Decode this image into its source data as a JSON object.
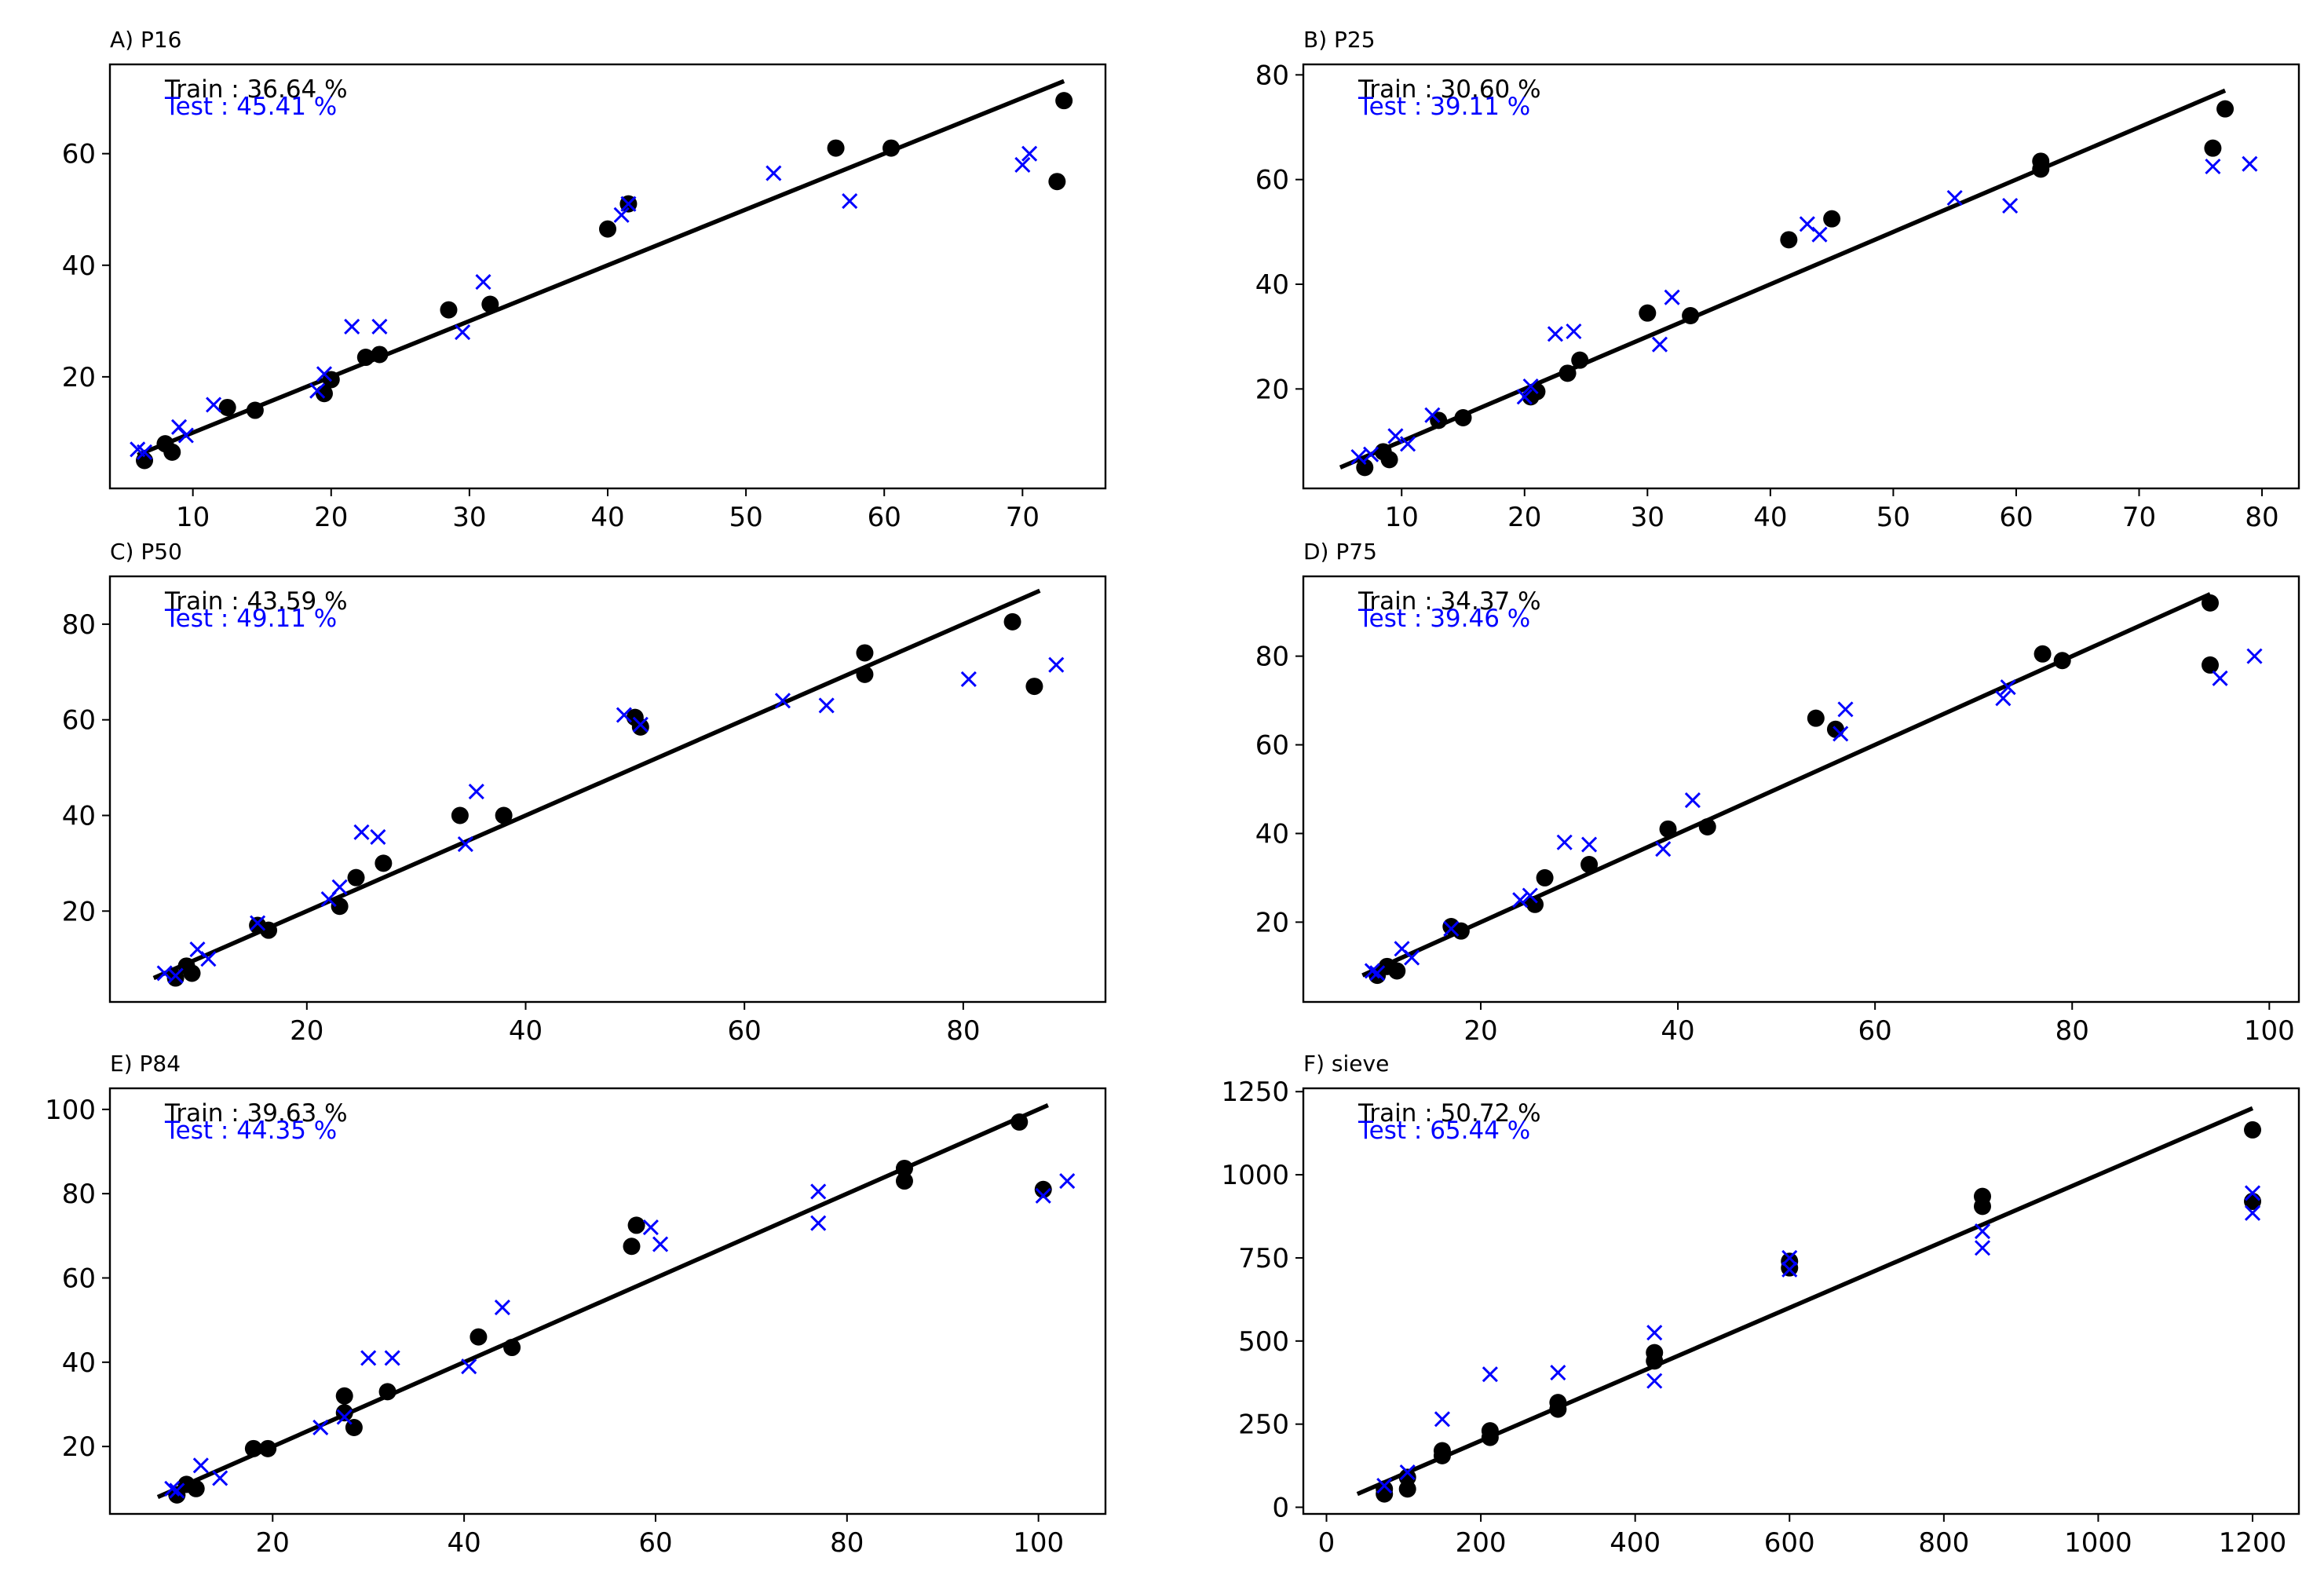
{
  "colors": {
    "train": "#000000",
    "test": "#0000ff",
    "fit": "#000000",
    "axes": "#000000"
  },
  "chart_data": [
    {
      "type": "scatter",
      "title": "A) P16",
      "xlim": [
        4,
        76
      ],
      "ylim": [
        0,
        76
      ],
      "xticks": [
        10,
        20,
        30,
        40,
        50,
        60,
        70
      ],
      "yticks": [
        20,
        40,
        60
      ],
      "fit_line": {
        "x": [
          6,
          73
        ],
        "y": [
          6,
          73
        ]
      },
      "annotations": {
        "train": "Train : 36.64 %",
        "test": "Test : 45.41 %"
      },
      "series": [
        {
          "marker": "circle",
          "color": "#000000",
          "points": [
            [
              6.5,
              5
            ],
            [
              8,
              8
            ],
            [
              8.5,
              6.5
            ],
            [
              12.5,
              14.5
            ],
            [
              14.5,
              14
            ],
            [
              19.5,
              17
            ],
            [
              20,
              19.5
            ],
            [
              22.5,
              23.5
            ],
            [
              23.5,
              24
            ],
            [
              28.5,
              32
            ],
            [
              31.5,
              33
            ],
            [
              40,
              46.5
            ],
            [
              41.5,
              51
            ],
            [
              56.5,
              61
            ],
            [
              60.5,
              61
            ],
            [
              72.5,
              55
            ],
            [
              73,
              69.5
            ]
          ]
        },
        {
          "marker": "x",
          "color": "#0000ff",
          "points": [
            [
              6,
              7
            ],
            [
              6.5,
              6.5
            ],
            [
              9,
              11
            ],
            [
              9.5,
              9.5
            ],
            [
              11.5,
              15
            ],
            [
              19,
              17.5
            ],
            [
              19.5,
              20.5
            ],
            [
              21.5,
              29
            ],
            [
              23.5,
              29
            ],
            [
              29.5,
              28
            ],
            [
              31,
              37
            ],
            [
              41,
              49
            ],
            [
              41.5,
              51
            ],
            [
              52,
              56.5
            ],
            [
              57.5,
              51.5
            ],
            [
              70,
              58
            ],
            [
              70.5,
              60
            ]
          ]
        }
      ]
    },
    {
      "type": "scatter",
      "title": "B) P25",
      "xlim": [
        2,
        83
      ],
      "ylim": [
        1,
        82
      ],
      "xticks": [
        10,
        20,
        30,
        40,
        50,
        60,
        70,
        80
      ],
      "yticks": [
        20,
        40,
        60,
        80
      ],
      "fit_line": {
        "x": [
          5,
          77
        ],
        "y": [
          5,
          77
        ]
      },
      "annotations": {
        "train": "Train : 30.60 %",
        "test": "Test : 39.11 %"
      },
      "series": [
        {
          "marker": "circle",
          "color": "#000000",
          "points": [
            [
              7,
              5
            ],
            [
              8.5,
              8
            ],
            [
              9,
              6.5
            ],
            [
              13,
              14
            ],
            [
              15,
              14.5
            ],
            [
              20.5,
              18.5
            ],
            [
              21,
              19.5
            ],
            [
              23.5,
              23
            ],
            [
              24.5,
              25.5
            ],
            [
              30,
              34.5
            ],
            [
              33.5,
              34
            ],
            [
              41.5,
              48.5
            ],
            [
              45,
              52.5
            ],
            [
              62,
              63.5
            ],
            [
              62,
              62
            ],
            [
              76,
              66
            ],
            [
              77,
              73.5
            ]
          ]
        },
        {
          "marker": "x",
          "color": "#0000ff",
          "points": [
            [
              6.5,
              7
            ],
            [
              7.5,
              7.5
            ],
            [
              9.5,
              11
            ],
            [
              10.5,
              9.5
            ],
            [
              12.5,
              15
            ],
            [
              20,
              18.5
            ],
            [
              20.5,
              20.5
            ],
            [
              22.5,
              30.5
            ],
            [
              24,
              31
            ],
            [
              31,
              28.5
            ],
            [
              32,
              37.5
            ],
            [
              43,
              51.5
            ],
            [
              44,
              49.5
            ],
            [
              55,
              56.5
            ],
            [
              59.5,
              55
            ],
            [
              76,
              62.5
            ],
            [
              79,
              63
            ]
          ]
        }
      ]
    },
    {
      "type": "scatter",
      "title": "C) P50",
      "xlim": [
        2,
        93
      ],
      "ylim": [
        1,
        90
      ],
      "xticks": [
        20,
        40,
        60,
        80
      ],
      "yticks": [
        20,
        40,
        60,
        80
      ],
      "fit_line": {
        "x": [
          6,
          87
        ],
        "y": [
          6,
          87
        ]
      },
      "annotations": {
        "train": "Train : 43.59 %",
        "test": "Test : 49.11 %"
      },
      "series": [
        {
          "marker": "circle",
          "color": "#000000",
          "points": [
            [
              8,
              6
            ],
            [
              9,
              8.5
            ],
            [
              9.5,
              7
            ],
            [
              15.5,
              17
            ],
            [
              16.5,
              16
            ],
            [
              23,
              21
            ],
            [
              24.5,
              27
            ],
            [
              27,
              30
            ],
            [
              34,
              40
            ],
            [
              38,
              40
            ],
            [
              50,
              60.5
            ],
            [
              50.5,
              58.5
            ],
            [
              71,
              69.5
            ],
            [
              71,
              74
            ],
            [
              84.5,
              80.5
            ],
            [
              86.5,
              67
            ]
          ]
        },
        {
          "marker": "x",
          "color": "#0000ff",
          "points": [
            [
              7,
              7
            ],
            [
              8,
              6.5
            ],
            [
              10,
              12
            ],
            [
              11,
              10
            ],
            [
              15.5,
              17.5
            ],
            [
              22,
              22.5
            ],
            [
              23,
              25
            ],
            [
              25,
              36.5
            ],
            [
              26.5,
              35.5
            ],
            [
              34.5,
              34
            ],
            [
              35.5,
              45
            ],
            [
              49,
              61
            ],
            [
              50.5,
              59
            ],
            [
              63.5,
              64
            ],
            [
              67.5,
              63
            ],
            [
              80.5,
              68.5
            ],
            [
              88.5,
              71.5
            ]
          ]
        }
      ]
    },
    {
      "type": "scatter",
      "title": "D) P75",
      "xlim": [
        2,
        103
      ],
      "ylim": [
        2,
        98
      ],
      "xticks": [
        20,
        40,
        60,
        80,
        100
      ],
      "yticks": [
        20,
        40,
        60,
        80
      ],
      "fit_line": {
        "x": [
          8,
          94
        ],
        "y": [
          8,
          94
        ]
      },
      "annotations": {
        "train": "Train : 34.37 %",
        "test": "Test : 39.46 %"
      },
      "series": [
        {
          "marker": "circle",
          "color": "#000000",
          "points": [
            [
              9.5,
              8
            ],
            [
              10.5,
              10
            ],
            [
              11.5,
              9
            ],
            [
              17,
              19
            ],
            [
              18,
              18
            ],
            [
              25.5,
              24
            ],
            [
              26.5,
              30
            ],
            [
              31,
              33
            ],
            [
              39,
              41
            ],
            [
              43,
              41.5
            ],
            [
              54,
              66
            ],
            [
              56,
              63.5
            ],
            [
              77,
              80.5
            ],
            [
              79,
              79
            ],
            [
              94,
              92
            ],
            [
              94,
              78
            ]
          ]
        },
        {
          "marker": "x",
          "color": "#0000ff",
          "points": [
            [
              9,
              9
            ],
            [
              9.5,
              8.5
            ],
            [
              12,
              14
            ],
            [
              13,
              12
            ],
            [
              17,
              18.5
            ],
            [
              24,
              25
            ],
            [
              25,
              26
            ],
            [
              28.5,
              38
            ],
            [
              31,
              37.5
            ],
            [
              38.5,
              36.5
            ],
            [
              41.5,
              47.5
            ],
            [
              56.5,
              62.5
            ],
            [
              57,
              68
            ],
            [
              73,
              70.5
            ],
            [
              73.5,
              73
            ],
            [
              95,
              75
            ],
            [
              98.5,
              80
            ]
          ]
        }
      ]
    },
    {
      "type": "scatter",
      "title": "E) P84",
      "xlim": [
        3,
        107
      ],
      "ylim": [
        4,
        105
      ],
      "xticks": [
        20,
        40,
        60,
        80,
        100
      ],
      "yticks": [
        20,
        40,
        60,
        80,
        100
      ],
      "fit_line": {
        "x": [
          8,
          101
        ],
        "y": [
          8,
          101
        ]
      },
      "annotations": {
        "train": "Train : 39.63 %",
        "test": "Test : 44.35 %"
      },
      "series": [
        {
          "marker": "circle",
          "color": "#000000",
          "points": [
            [
              10,
              8.5
            ],
            [
              11,
              11
            ],
            [
              12,
              10
            ],
            [
              18,
              19.5
            ],
            [
              19.5,
              19.5
            ],
            [
              27.5,
              28
            ],
            [
              27.5,
              32
            ],
            [
              28.5,
              24.5
            ],
            [
              32,
              33
            ],
            [
              41.5,
              46
            ],
            [
              45,
              43.5
            ],
            [
              57.5,
              67.5
            ],
            [
              58,
              72.5
            ],
            [
              86,
              86
            ],
            [
              86,
              83
            ],
            [
              98,
              97
            ],
            [
              100.5,
              81
            ]
          ]
        },
        {
          "marker": "x",
          "color": "#0000ff",
          "points": [
            [
              9.5,
              10
            ],
            [
              10,
              9.5
            ],
            [
              12.5,
              15.5
            ],
            [
              14.5,
              12.5
            ],
            [
              25,
              24.5
            ],
            [
              27.5,
              27
            ],
            [
              30,
              41
            ],
            [
              32.5,
              41
            ],
            [
              40.5,
              39
            ],
            [
              44,
              53
            ],
            [
              59.5,
              72
            ],
            [
              60.5,
              68
            ],
            [
              77,
              80.5
            ],
            [
              77,
              73
            ],
            [
              100.5,
              79.5
            ],
            [
              103,
              83
            ]
          ]
        }
      ]
    },
    {
      "type": "scatter",
      "title": "F) sieve",
      "xlim": [
        -30,
        1260
      ],
      "ylim": [
        -20,
        1260
      ],
      "xticks": [
        0,
        200,
        400,
        600,
        800,
        1000,
        1200
      ],
      "yticks": [
        0,
        250,
        500,
        750,
        1000,
        1250
      ],
      "fit_line": {
        "x": [
          40,
          1200
        ],
        "y": [
          40,
          1200
        ]
      },
      "annotations": {
        "train": "Train : 50.72 %",
        "test": "Test : 65.44 %"
      },
      "series": [
        {
          "marker": "circle",
          "color": "#000000",
          "points": [
            [
              75,
              40
            ],
            [
              75,
              55
            ],
            [
              105,
              55
            ],
            [
              105,
              90
            ],
            [
              150,
              155
            ],
            [
              150,
              170
            ],
            [
              212,
              210
            ],
            [
              212,
              230
            ],
            [
              300,
              295
            ],
            [
              300,
              315
            ],
            [
              425,
              440
            ],
            [
              425,
              465
            ],
            [
              600,
              720
            ],
            [
              600,
              740
            ],
            [
              850,
              905
            ],
            [
              850,
              935
            ],
            [
              1200,
              920
            ],
            [
              1200,
              1135
            ]
          ]
        },
        {
          "marker": "x",
          "color": "#0000ff",
          "points": [
            [
              75,
              65
            ],
            [
              105,
              105
            ],
            [
              150,
              265
            ],
            [
              212,
              400
            ],
            [
              300,
              405
            ],
            [
              425,
              525
            ],
            [
              425,
              380
            ],
            [
              600,
              715
            ],
            [
              600,
              750
            ],
            [
              850,
              780
            ],
            [
              850,
              830
            ],
            [
              1200,
              885
            ],
            [
              1200,
              945
            ]
          ]
        }
      ]
    }
  ]
}
